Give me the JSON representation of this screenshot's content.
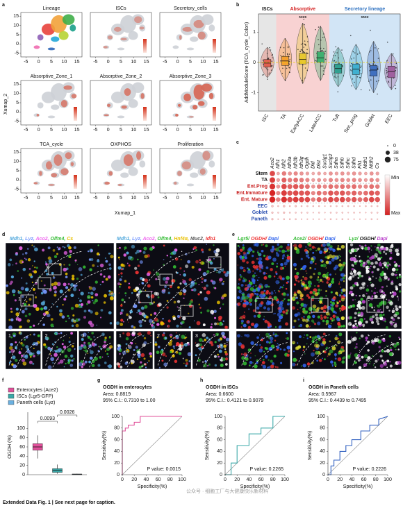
{
  "caption": "Extended Data Fig. 1 | See next page for caption.",
  "watermark": "公众号 · 细胞工厂与大健康快乐新材料",
  "panels": {
    "a": {
      "label": "a",
      "titles": [
        "Lineage",
        "ISCs",
        "Secretory_cells",
        "Absorptive_Zone_1",
        "Absorptive_Zone_2",
        "Absorptive_Zone_3",
        "TCA_cycle",
        "OXPHOS",
        "Proliferation"
      ],
      "xlim": [
        -7,
        17
      ],
      "ylim": [
        -7,
        17
      ],
      "xticks": [
        -5,
        0,
        5,
        10,
        15
      ],
      "yticks": [
        -5,
        0,
        5,
        10,
        15
      ],
      "xlabel": "Xumap_1",
      "ylabel": "Xumap_2"
    },
    "b": {
      "label": "b",
      "ylabel": "AddModuleScore (TCA_cycle_Colon)",
      "ylim": [
        -1.6,
        1.6
      ],
      "yticks": [
        -1,
        0,
        1
      ],
      "hline": 0,
      "groups": [
        {
          "name": "ISCs",
          "color": "#e6e6e6",
          "text_color": "#111111",
          "categories": [
            "ISC"
          ],
          "boxes": [
            {
              "low": -0.5,
              "q1": -0.15,
              "median": -0.02,
              "q3": 0.1,
              "high": 0.5,
              "color": "#e06050"
            }
          ]
        },
        {
          "name": "Absorptive",
          "color": "#f8d2d2",
          "text_color": "#d42020",
          "stars": "****",
          "categories": [
            "TA",
            "EarlyACC",
            "LateACC"
          ],
          "boxes": [
            {
              "low": -0.6,
              "q1": -0.1,
              "median": 0.05,
              "q3": 0.2,
              "high": 0.8,
              "color": "#f5a030"
            },
            {
              "low": -0.7,
              "q1": -0.05,
              "median": 0.1,
              "q3": 0.3,
              "high": 1.3,
              "color": "#e8c830"
            },
            {
              "low": -0.6,
              "q1": 0,
              "median": 0.15,
              "q3": 0.35,
              "high": 1.2,
              "color": "#40b070"
            }
          ]
        },
        {
          "name": "Secretory lineage",
          "color": "#d2e5f6",
          "text_color": "#2a6fc0",
          "stars": "****",
          "categories": [
            "Tuft",
            "Sec_prog",
            "Goblet",
            "EEC"
          ],
          "boxes": [
            {
              "low": -0.8,
              "q1": -0.35,
              "median": -0.2,
              "q3": -0.05,
              "high": 0.5,
              "color": "#30a090"
            },
            {
              "low": -0.9,
              "q1": -0.4,
              "median": -0.22,
              "q3": -0.05,
              "high": 0.6,
              "color": "#40b0d0"
            },
            {
              "low": -1.0,
              "q1": -0.45,
              "median": -0.25,
              "q3": -0.1,
              "high": 0.7,
              "color": "#4070c0"
            },
            {
              "low": -0.9,
              "q1": -0.5,
              "median": -0.3,
              "q3": -0.12,
              "high": 0.3,
              "color": "#a060a0"
            }
          ]
        }
      ]
    },
    "c": {
      "label": "c",
      "genes": [
        "Aco2",
        "Idh1",
        "Idh2",
        "Idh3a",
        "Idh3b",
        "Idh3g",
        "Ogdh",
        "Dld",
        "Dlst",
        "Suclg1",
        "Suclg2",
        "Sdha",
        "Sdhb",
        "Sdhc",
        "Sdhd",
        "Fh1",
        "Mdh1",
        "Mdh2",
        "Cs"
      ],
      "rows": [
        {
          "name": "Stem",
          "color": "#111111",
          "sizes": [
            60,
            20,
            40,
            30,
            35,
            30,
            25,
            20,
            25,
            20,
            30,
            25,
            30,
            25,
            30,
            25,
            20,
            30,
            25
          ]
        },
        {
          "name": "TA",
          "color": "#111111",
          "sizes": [
            65,
            25,
            50,
            40,
            45,
            40,
            35,
            25,
            30,
            25,
            35,
            30,
            35,
            30,
            35,
            30,
            25,
            35,
            30
          ]
        },
        {
          "name": "Ent.Prog",
          "color": "#c82020",
          "sizes": [
            70,
            30,
            60,
            50,
            55,
            50,
            45,
            30,
            40,
            35,
            45,
            40,
            45,
            40,
            45,
            35,
            35,
            45,
            40
          ]
        },
        {
          "name": "Ent.Immature",
          "color": "#c82020",
          "sizes": [
            75,
            35,
            65,
            55,
            60,
            55,
            55,
            35,
            45,
            40,
            55,
            50,
            55,
            45,
            50,
            40,
            45,
            55,
            50
          ]
        },
        {
          "name": "Ent. Mature",
          "color": "#c82020",
          "sizes": [
            75,
            40,
            70,
            60,
            65,
            60,
            60,
            40,
            50,
            45,
            60,
            55,
            60,
            50,
            55,
            45,
            50,
            60,
            55
          ]
        },
        {
          "name": "EEC",
          "color": "#2a4fb0",
          "sizes": [
            10,
            5,
            10,
            5,
            8,
            5,
            5,
            5,
            5,
            3,
            5,
            5,
            5,
            5,
            5,
            3,
            5,
            5,
            5
          ]
        },
        {
          "name": "Goblet",
          "color": "#2a4fb0",
          "sizes": [
            8,
            5,
            8,
            5,
            5,
            5,
            5,
            3,
            5,
            3,
            5,
            5,
            5,
            3,
            5,
            3,
            3,
            5,
            5
          ]
        },
        {
          "name": "Paneth",
          "color": "#2a4fb0",
          "sizes": [
            8,
            3,
            5,
            5,
            5,
            3,
            3,
            3,
            3,
            3,
            5,
            3,
            5,
            3,
            3,
            3,
            3,
            5,
            3
          ]
        }
      ],
      "size_legend": [
        0,
        38,
        75
      ],
      "color_legend": [
        "Min",
        "Max"
      ]
    },
    "d": {
      "label": "d",
      "headers": [
        [
          {
            "text": "Mdh1, ",
            "color": "#55aadd"
          },
          {
            "text": "Lyz, ",
            "color": "#7799ff"
          },
          {
            "text": "Aco2, ",
            "color": "#ee66ee"
          },
          {
            "text": "Olfm4, ",
            "color": "#33bb33"
          },
          {
            "text": "Cs",
            "color": "#e8c000"
          }
        ],
        [
          {
            "text": "Mdh1, ",
            "color": "#55aadd"
          },
          {
            "text": "Lyz, ",
            "color": "#7799ff"
          },
          {
            "text": "Aco2, ",
            "color": "#ee66ee"
          },
          {
            "text": "Olfm4, ",
            "color": "#33bb33"
          },
          {
            "text": "Hnf4α, ",
            "color": "#e8c000"
          },
          {
            "text": "Muc2, ",
            "color": "#555555"
          },
          {
            "text": "Idh1",
            "color": "#ee3333"
          }
        ]
      ],
      "insets": [
        "1",
        "2",
        "3",
        "4"
      ]
    },
    "e": {
      "label": "e",
      "headers": [
        [
          {
            "text": "Lgr5/ ",
            "color": "#33bb33"
          },
          {
            "text": "OGDH/ ",
            "color": "#ee3333"
          },
          {
            "text": "Dapi",
            "color": "#3366ee"
          }
        ],
        [
          {
            "text": "Ace2/ ",
            "color": "#33bb33"
          },
          {
            "text": "OGDH/ ",
            "color": "#ee3333"
          },
          {
            "text": "Dapi",
            "color": "#3366ee"
          }
        ],
        [
          {
            "text": "Lyz/ ",
            "color": "#33bb33"
          },
          {
            "text": "OGDH/ ",
            "color": "#222222"
          },
          {
            "text": "Dapi",
            "color": "#bb44cc"
          }
        ]
      ]
    },
    "f": {
      "label": "f",
      "ylabel": "OGDH (%)",
      "ylim": [
        0,
        120
      ],
      "yticks": [
        0,
        20,
        40,
        60,
        80,
        100
      ],
      "boxes": [
        {
          "name": "Enterocytes (Ace2)",
          "color": "#e0509a",
          "low": 35,
          "q1": 53,
          "median": 60,
          "q3": 67,
          "high": 85
        },
        {
          "name": "ISCs (Lgr5-GFP)",
          "color": "#3aa8a8",
          "low": 2,
          "q1": 5,
          "median": 10,
          "q3": 13,
          "high": 22
        },
        {
          "name": "Paneth cells (Lyz)",
          "color": "#6ab0e0",
          "low": 0,
          "q1": 0.5,
          "median": 1,
          "q3": 1.5,
          "high": 2
        }
      ],
      "pvalues": [
        "0.0093",
        "0.0026"
      ]
    },
    "g": {
      "label": "g",
      "title": "OGDH in enterocytes",
      "area": "Area: 0.8819",
      "ci": "95% C.I.: 0.7310 to 1.00",
      "pvalue": "P value: 0.0015",
      "color": "#e0509a",
      "x": [
        0,
        0,
        5,
        5,
        10,
        10,
        20,
        20,
        30,
        30,
        100
      ],
      "y": [
        0,
        75,
        75,
        80,
        80,
        85,
        85,
        90,
        90,
        100,
        100
      ],
      "xlabel": "Specificity(%)",
      "ylabel": "Sensitivity(%)",
      "xlim": [
        0,
        100
      ],
      "ylim": [
        0,
        100
      ],
      "xticks": [
        0,
        20,
        40,
        60,
        80,
        100
      ],
      "yticks": [
        0,
        20,
        40,
        60,
        80,
        100
      ]
    },
    "h": {
      "label": "h",
      "title": "OGDH in ISCs",
      "area": "Area: 0.6600",
      "ci": "95% C.I.: 0.4121 to 0.9079",
      "pvalue": "P value: 0.2265",
      "color": "#3aa8a8",
      "x": [
        0,
        10,
        10,
        20,
        20,
        40,
        40,
        60,
        60,
        80,
        80,
        100
      ],
      "y": [
        0,
        0,
        20,
        20,
        50,
        50,
        70,
        70,
        80,
        80,
        100,
        100
      ],
      "xlabel": "Specificity(%)",
      "ylabel": "Sensitivity(%)",
      "xlim": [
        0,
        100
      ],
      "ylim": [
        0,
        100
      ],
      "xticks": [
        0,
        20,
        40,
        60,
        80,
        100
      ],
      "yticks": [
        0,
        20,
        40,
        60,
        80,
        100
      ]
    },
    "i": {
      "label": "i",
      "title": "OGDH in Paneth cells",
      "area": "Area: 0.5967",
      "ci": "95% C.I.: 0.4439 to 0.7495",
      "pvalue": "P value: 0.2226",
      "color": "#3060c0",
      "x": [
        0,
        5,
        5,
        10,
        10,
        20,
        20,
        30,
        30,
        40,
        40,
        55,
        55,
        70,
        70,
        85,
        85,
        100
      ],
      "y": [
        0,
        0,
        15,
        15,
        25,
        25,
        40,
        40,
        50,
        50,
        60,
        60,
        75,
        75,
        85,
        85,
        95,
        100
      ],
      "xlabel": "Specificity(%)",
      "ylabel": "Sensitivity(%)",
      "xlim": [
        0,
        100
      ],
      "ylim": [
        0,
        100
      ],
      "xticks": [
        0,
        20,
        40,
        60,
        80,
        100
      ],
      "yticks": [
        0,
        20,
        40,
        60,
        80,
        100
      ]
    }
  }
}
